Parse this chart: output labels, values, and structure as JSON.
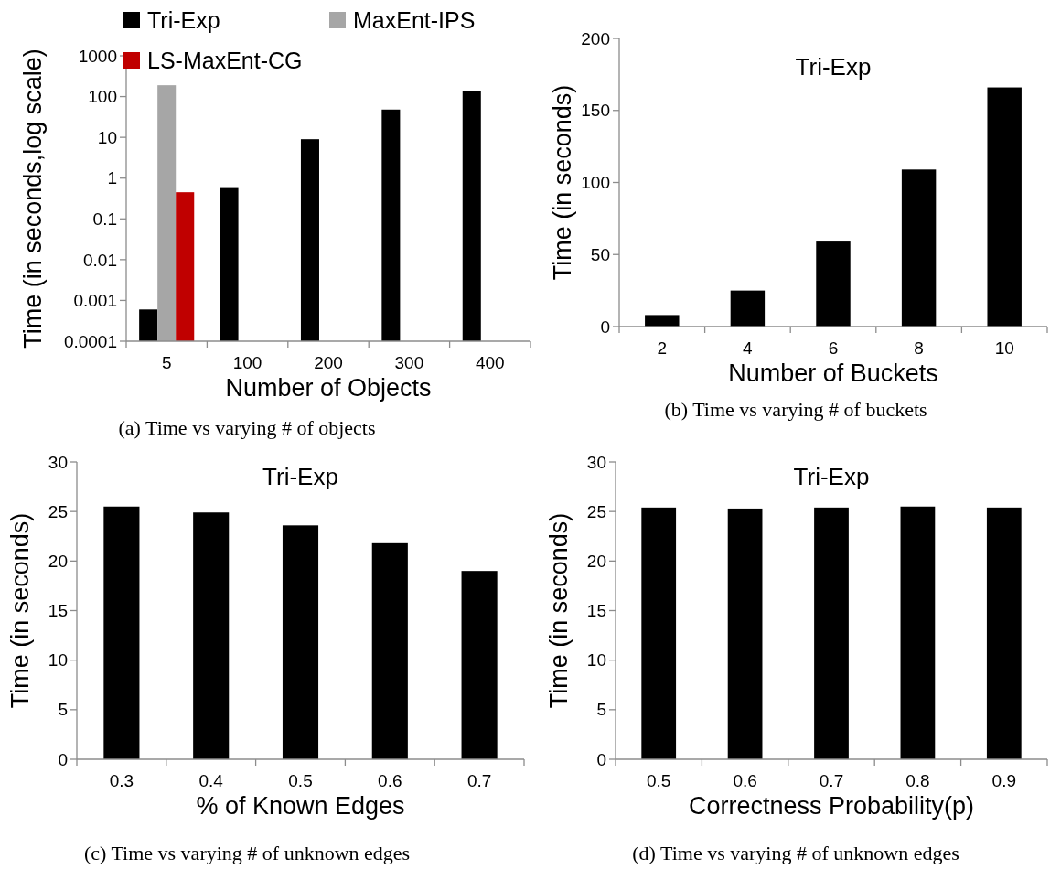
{
  "chart_data": [
    {
      "type": "bar",
      "categories": [
        "5",
        "100",
        "200",
        "300",
        "400"
      ],
      "xlabel": "Number of Objects",
      "ylabel": "Time (in seconds,log scale)",
      "log": true,
      "ylim": [
        0.0001,
        1000
      ],
      "yticks": [
        0.0001,
        0.001,
        0.01,
        0.1,
        1,
        10,
        100,
        1000
      ],
      "legend": "top left",
      "annotations": [
        "(a) Time vs varying # of objects"
      ],
      "series": [
        {
          "name": "Tri-Exp",
          "color": "#000000",
          "values": [
            0.0006,
            0.6,
            9,
            48,
            135
          ]
        },
        {
          "name": "MaxEnt-IPS",
          "color": "#a6a6a6",
          "values": [
            190,
            null,
            null,
            null,
            null
          ]
        },
        {
          "name": "LS-MaxEnt-CG",
          "color": "#c00000",
          "values": [
            0.45,
            null,
            null,
            null,
            null
          ]
        }
      ]
    },
    {
      "type": "bar",
      "categories": [
        "2",
        "4",
        "6",
        "8",
        "10"
      ],
      "xlabel": "Number of Buckets",
      "ylabel": "Time (in seconds)",
      "ylim": [
        0,
        200
      ],
      "yticks": [
        0,
        50,
        100,
        150,
        200
      ],
      "legend": "top",
      "annotations": [
        "(b) Time vs varying # of buckets"
      ],
      "series": [
        {
          "name": "Tri-Exp",
          "color": "#000000",
          "values": [
            8,
            25,
            59,
            109,
            166
          ]
        }
      ]
    },
    {
      "type": "bar",
      "categories": [
        "0.3",
        "0.4",
        "0.5",
        "0.6",
        "0.7"
      ],
      "xlabel": "% of Known Edges",
      "ylabel": "Time (in seconds)",
      "ylim": [
        0,
        30
      ],
      "yticks": [
        0,
        5,
        10,
        15,
        20,
        25,
        30
      ],
      "legend": "top",
      "annotations": [
        "(c) Time vs varying # of unknown edges"
      ],
      "series": [
        {
          "name": "Tri-Exp",
          "color": "#000000",
          "values": [
            25.5,
            24.9,
            23.6,
            21.8,
            19.0
          ]
        }
      ]
    },
    {
      "type": "bar",
      "categories": [
        "0.5",
        "0.6",
        "0.7",
        "0.8",
        "0.9"
      ],
      "xlabel": "Correctness Probability(p)",
      "ylabel": "Time (in seconds)",
      "ylim": [
        0,
        30
      ],
      "yticks": [
        0,
        5,
        10,
        15,
        20,
        25,
        30
      ],
      "legend": "top",
      "annotations": [
        "(d) Time vs varying # of unknown edges"
      ],
      "series": [
        {
          "name": "Tri-Exp",
          "color": "#000000",
          "values": [
            25.4,
            25.3,
            25.4,
            25.5,
            25.4
          ]
        }
      ]
    }
  ]
}
